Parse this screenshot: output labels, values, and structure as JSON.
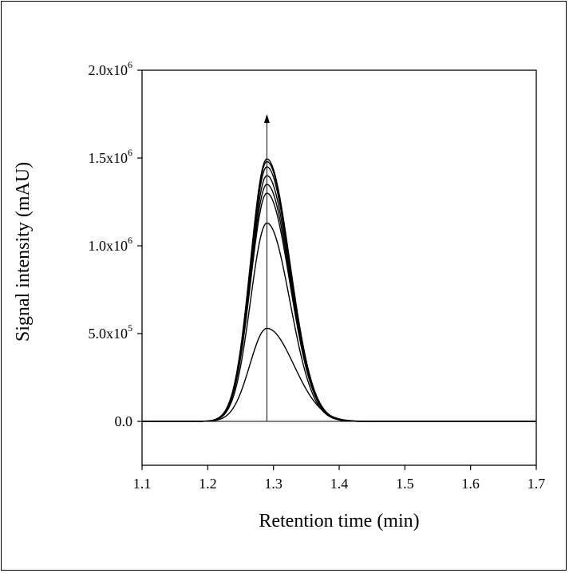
{
  "chart_data": {
    "type": "line",
    "title": "",
    "xlabel": "Retention time (min)",
    "ylabel": "Signal intensity (mAU)",
    "xlim": [
      1.1,
      1.7
    ],
    "ylim": [
      -250000,
      2000000
    ],
    "x_ticks": [
      {
        "value": 1.1,
        "label": "1.1"
      },
      {
        "value": 1.2,
        "label": "1.2"
      },
      {
        "value": 1.3,
        "label": "1.3"
      },
      {
        "value": 1.4,
        "label": "1.4"
      },
      {
        "value": 1.5,
        "label": "1.5"
      },
      {
        "value": 1.6,
        "label": "1.6"
      },
      {
        "value": 1.7,
        "label": "1.7"
      }
    ],
    "y_ticks": [
      {
        "value": 0,
        "mantissa": "0.0",
        "exponent": ""
      },
      {
        "value": 500000,
        "mantissa": "5.0x10",
        "exponent": "5"
      },
      {
        "value": 1000000,
        "mantissa": "1.0x10",
        "exponent": "6"
      },
      {
        "value": 1500000,
        "mantissa": "1.5x10",
        "exponent": "6"
      },
      {
        "value": 2000000,
        "mantissa": "2.0x10",
        "exponent": "6"
      }
    ],
    "peak_center": 1.29,
    "grid": false,
    "legend": "none",
    "arrow": {
      "x": 1.29,
      "y_start": 0,
      "y_end": 1750000
    },
    "series": [
      {
        "peak_height": 530000,
        "sigma_left": 0.026,
        "sigma_right": 0.041
      },
      {
        "peak_height": 1130000,
        "sigma_left": 0.025,
        "sigma_right": 0.035
      },
      {
        "peak_height": 1300000,
        "sigma_left": 0.025,
        "sigma_right": 0.035
      },
      {
        "peak_height": 1350000,
        "sigma_left": 0.025,
        "sigma_right": 0.035
      },
      {
        "peak_height": 1400000,
        "sigma_left": 0.025,
        "sigma_right": 0.035
      },
      {
        "peak_height": 1450000,
        "sigma_left": 0.025,
        "sigma_right": 0.035
      },
      {
        "peak_height": 1480000,
        "sigma_left": 0.025,
        "sigma_right": 0.035
      },
      {
        "peak_height": 1495000,
        "sigma_left": 0.025,
        "sigma_right": 0.035
      }
    ],
    "line_color": "#000000"
  }
}
